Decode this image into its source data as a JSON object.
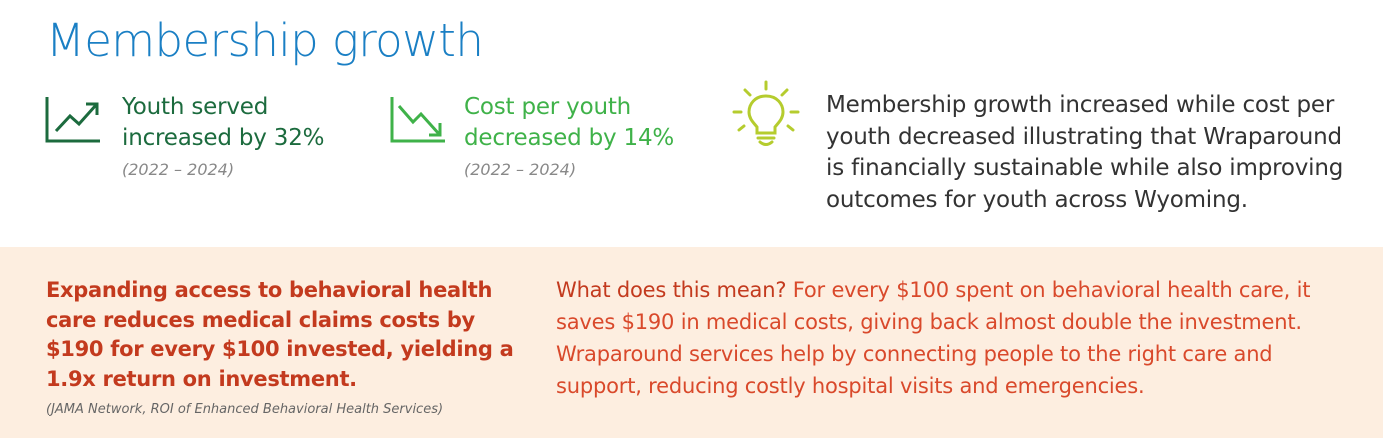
{
  "title": "Membership growth",
  "stats": {
    "youth": {
      "line1": "Youth served",
      "line2": "increased by 32%",
      "period": "(2022 – 2024)",
      "icon": "trend-up-icon",
      "color": "#1c6b3e"
    },
    "cost": {
      "line1": "Cost per youth",
      "line2": "decreased by 14%",
      "period": "(2022 – 2024)",
      "icon": "trend-down-icon",
      "color": "#3fb249"
    }
  },
  "insight": {
    "icon": "lightbulb-icon",
    "icon_color": "#b5cc2e",
    "text": "Membership growth increased while cost per youth decreased illustrating that Wraparound is financially sustainable while also improving outcomes for youth across Wyoming."
  },
  "callout": {
    "text": "Expanding access to behavioral health care reduces medical claims costs by $190 for every $100 invested, yielding a 1.9x return on investment.",
    "source": "(JAMA Network, ROI of Enhanced Behavioral Health Services)",
    "color": "#c33a1e"
  },
  "meaning": {
    "lead": "What does this mean?",
    "text": "For every $100 spent on behavioral health care, it saves $190 in medical costs, giving back almost double the investment. Wraparound services help by connecting people to the right care and support, reducing costly hospital visits and emergencies."
  },
  "colors": {
    "title": "#1a7fc4",
    "band": "#fdeee0"
  }
}
